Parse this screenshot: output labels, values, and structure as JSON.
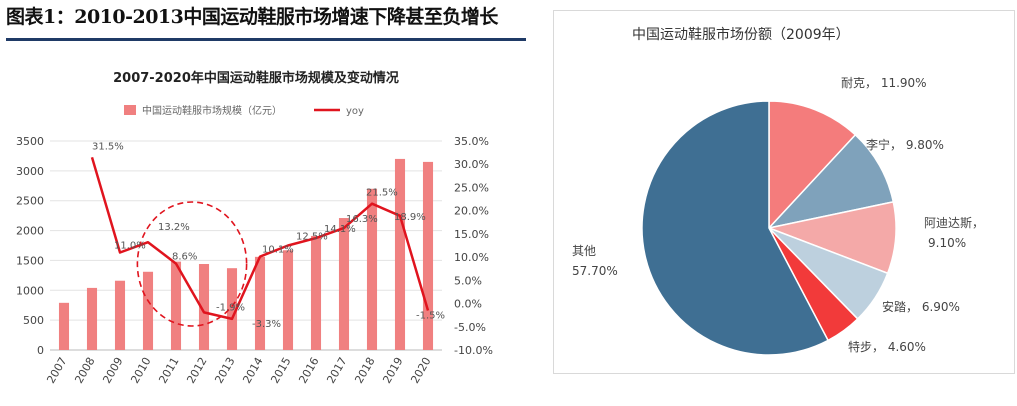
{
  "page_title": "图表1：2010-2013中国运动鞋服市场增速下降甚至负增长",
  "colors": {
    "bar": "#f08080",
    "line": "#e0141e",
    "title_rule": "#1f3a66",
    "circle": "#e0141e"
  },
  "chart_data": [
    {
      "type": "bar+line",
      "title": "2007-2020年中国运动鞋服市场规模及变动情况",
      "categories": [
        "2007",
        "2008",
        "2009",
        "2010",
        "2011",
        "2012",
        "2013",
        "2014",
        "2015",
        "2016",
        "2017",
        "2018",
        "2019",
        "2020"
      ],
      "series": [
        {
          "name": "中国运动鞋服市场规模（亿元）",
          "type": "bar",
          "axis": "left",
          "values": [
            790,
            1040,
            1160,
            1310,
            1480,
            1440,
            1370,
            1560,
            1670,
            1910,
            2210,
            2700,
            3200,
            3150
          ]
        },
        {
          "name": "yoy",
          "type": "line",
          "axis": "right",
          "values": [
            null,
            31.5,
            11.0,
            13.2,
            8.6,
            -1.9,
            -3.3,
            10.1,
            12.5,
            14.1,
            16.3,
            21.5,
            18.9,
            -1.5
          ],
          "labels": [
            "",
            "31.5%",
            "11.0%",
            "13.2%",
            "8.6%",
            "-1.9%",
            "-3.3%",
            "10.1%",
            "12.5%",
            "14.1%",
            "16.3%",
            "21.5%",
            "18.9%",
            "-1.5%"
          ]
        }
      ],
      "y_left": {
        "min": 0,
        "max": 3500,
        "ticks": [
          "0",
          "500",
          "1000",
          "1500",
          "2000",
          "2500",
          "3000",
          "3500"
        ]
      },
      "y_right": {
        "min": -10,
        "max": 35,
        "ticks": [
          "-10.0%",
          "-5.0%",
          "0.0%",
          "5.0%",
          "10.0%",
          "15.0%",
          "20.0%",
          "25.0%",
          "30.0%",
          "35.0%"
        ]
      },
      "grid": true,
      "legend_position": "top",
      "annotation": "dashed red circle highlighting 2010-2013"
    },
    {
      "type": "pie",
      "title": "中国运动鞋服市场份额（2009年）",
      "slices": [
        {
          "name": "耐克",
          "value": 11.9,
          "label": "11.90%",
          "color": "#f47c7c"
        },
        {
          "name": "李宁",
          "value": 9.8,
          "label": "9.80%",
          "color": "#7fa2bb"
        },
        {
          "name": "阿迪达斯",
          "value": 9.1,
          "label": "9.10%",
          "color": "#f4a9a8"
        },
        {
          "name": "安踏",
          "value": 6.9,
          "label": "6.90%",
          "color": "#bdd0de"
        },
        {
          "name": "特步",
          "value": 4.6,
          "label": "4.60%",
          "color": "#f23a3a"
        },
        {
          "name": "其他",
          "value": 57.7,
          "label": "57.70%",
          "color": "#3f6f93"
        }
      ]
    }
  ]
}
